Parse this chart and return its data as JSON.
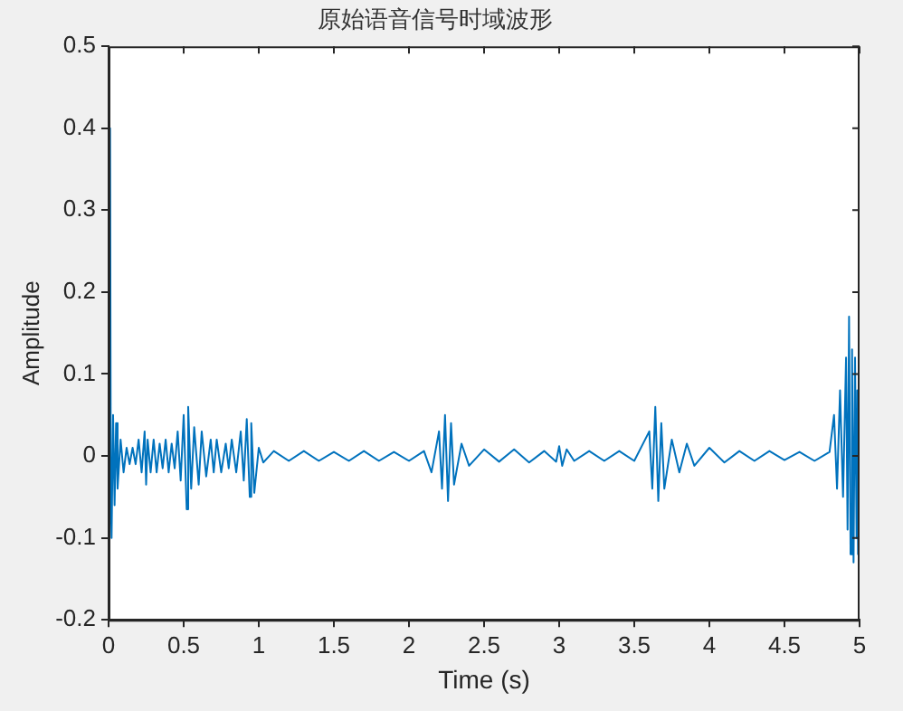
{
  "chart_data": {
    "type": "line",
    "title": "原始语音信号时域波形",
    "xlabel": "Time (s)",
    "ylabel": "Amplitude",
    "x": [
      0,
      0.01,
      0.015,
      0.02,
      0.03,
      0.04,
      0.05,
      0.06,
      0.08,
      0.1,
      0.12,
      0.14,
      0.16,
      0.18,
      0.2,
      0.22,
      0.24,
      0.25,
      0.26,
      0.28,
      0.3,
      0.32,
      0.34,
      0.36,
      0.38,
      0.4,
      0.42,
      0.44,
      0.46,
      0.48,
      0.5,
      0.52,
      0.53,
      0.55,
      0.57,
      0.6,
      0.62,
      0.65,
      0.68,
      0.7,
      0.72,
      0.75,
      0.78,
      0.8,
      0.82,
      0.85,
      0.88,
      0.9,
      0.92,
      0.94,
      0.95,
      0.97,
      1,
      1.03,
      1.1,
      1.2,
      1.3,
      1.4,
      1.5,
      1.6,
      1.7,
      1.8,
      1.9,
      2,
      2.1,
      2.15,
      2.2,
      2.22,
      2.24,
      2.26,
      2.28,
      2.3,
      2.35,
      2.4,
      2.5,
      2.6,
      2.7,
      2.8,
      2.9,
      2.98,
      3,
      3.02,
      3.05,
      3.1,
      3.2,
      3.3,
      3.4,
      3.5,
      3.6,
      3.62,
      3.64,
      3.66,
      3.68,
      3.7,
      3.75,
      3.8,
      3.85,
      3.9,
      4,
      4.1,
      4.2,
      4.3,
      4.4,
      4.5,
      4.6,
      4.7,
      4.8,
      4.83,
      4.85,
      4.87,
      4.89,
      4.91,
      4.92,
      4.93,
      4.94,
      4.95,
      4.96,
      4.97,
      4.98,
      4.985,
      4.99,
      5
    ],
    "series": [
      {
        "color": "#0072bd",
        "values": [
          0,
          0.4,
          -0.05,
          -0.1,
          0.05,
          -0.06,
          0.04,
          -0.04,
          0.02,
          -0.02,
          0.01,
          -0.01,
          0.01,
          -0.01,
          0.02,
          -0.02,
          0.03,
          -0.035,
          0.02,
          -0.02,
          0.02,
          -0.02,
          0.015,
          -0.015,
          0.02,
          -0.02,
          0.015,
          -0.015,
          0.03,
          -0.03,
          0.05,
          -0.065,
          0.06,
          -0.04,
          0.035,
          -0.035,
          0.03,
          -0.025,
          0.02,
          -0.02,
          0.02,
          -0.02,
          0.015,
          -0.015,
          0.02,
          -0.02,
          0.03,
          -0.03,
          0.045,
          -0.05,
          0.04,
          -0.045,
          0.01,
          -0.008,
          0.006,
          -0.006,
          0.006,
          -0.006,
          0.005,
          -0.006,
          0.006,
          -0.006,
          0.005,
          -0.006,
          0.006,
          -0.02,
          0.03,
          -0.04,
          0.05,
          -0.055,
          0.04,
          -0.035,
          0.015,
          -0.012,
          0.008,
          -0.007,
          0.008,
          -0.008,
          0.006,
          -0.007,
          0.012,
          -0.012,
          0.008,
          -0.006,
          0.006,
          -0.006,
          0.006,
          -0.006,
          0.03,
          -0.04,
          0.06,
          -0.055,
          0.04,
          -0.04,
          0.02,
          -0.02,
          0.015,
          -0.012,
          0.01,
          -0.008,
          0.006,
          -0.006,
          0.006,
          -0.005,
          0.005,
          -0.006,
          0.005,
          0.05,
          -0.04,
          0.08,
          -0.05,
          0.12,
          -0.09,
          0.17,
          -0.12,
          0.13,
          -0.13,
          0.12,
          -0.1,
          0.08,
          -0.12,
          0.05
        ]
      }
    ],
    "xlim": [
      0,
      5
    ],
    "xticks": [
      0,
      0.5,
      1,
      1.5,
      2,
      2.5,
      3,
      3.5,
      4,
      4.5,
      5
    ],
    "ylim": [
      -0.2,
      0.5
    ],
    "yticks": [
      -0.2,
      -0.1,
      0,
      0.1,
      0.2,
      0.3,
      0.4,
      0.5
    ],
    "grid": false,
    "legend": false,
    "marker": "none",
    "line_style": "solid"
  }
}
